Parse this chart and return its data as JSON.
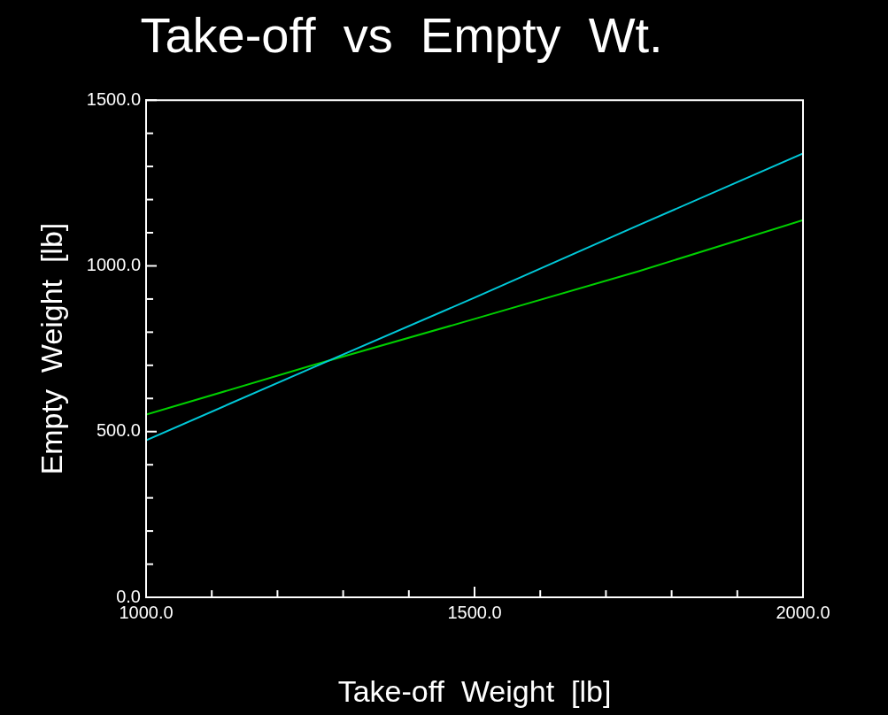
{
  "chart_data": {
    "type": "line",
    "title": "Take-off  vs  Empty  Wt.",
    "xlabel": "Take-off  Weight  [lb]",
    "ylabel": "Empty  Weight  [lb]",
    "x": [
      1000,
      1250,
      1500,
      1750,
      2000
    ],
    "series": [
      {
        "color": "#00c8d8",
        "values": [
          474,
          690,
          904,
          1123,
          1339
        ]
      },
      {
        "color": "#00d000",
        "values": [
          551,
          698,
          840,
          984,
          1138
        ]
      }
    ],
    "xlim": [
      1000,
      2000
    ],
    "ylim": [
      0,
      1500
    ],
    "xticks": [
      {
        "value": 1000,
        "label": "1000.0"
      },
      {
        "value": 1100,
        "label": null
      },
      {
        "value": 1200,
        "label": null
      },
      {
        "value": 1300,
        "label": null
      },
      {
        "value": 1400,
        "label": null
      },
      {
        "value": 1500,
        "label": "1500.0"
      },
      {
        "value": 1600,
        "label": null
      },
      {
        "value": 1700,
        "label": null
      },
      {
        "value": 1800,
        "label": null
      },
      {
        "value": 1900,
        "label": null
      },
      {
        "value": 2000,
        "label": "2000.0"
      }
    ],
    "yticks": [
      {
        "value": 0,
        "label": "0.0"
      },
      {
        "value": 100,
        "label": null
      },
      {
        "value": 200,
        "label": null
      },
      {
        "value": 300,
        "label": null
      },
      {
        "value": 400,
        "label": null
      },
      {
        "value": 500,
        "label": "500.0"
      },
      {
        "value": 600,
        "label": null
      },
      {
        "value": 700,
        "label": null
      },
      {
        "value": 800,
        "label": null
      },
      {
        "value": 900,
        "label": null
      },
      {
        "value": 1000,
        "label": "1000.0"
      },
      {
        "value": 1100,
        "label": null
      },
      {
        "value": 1200,
        "label": null
      },
      {
        "value": 1300,
        "label": null
      },
      {
        "value": 1400,
        "label": null
      },
      {
        "value": 1500,
        "label": "1500.0"
      }
    ],
    "grid": false,
    "legend": false,
    "marker": "none",
    "line_style": "solid"
  }
}
